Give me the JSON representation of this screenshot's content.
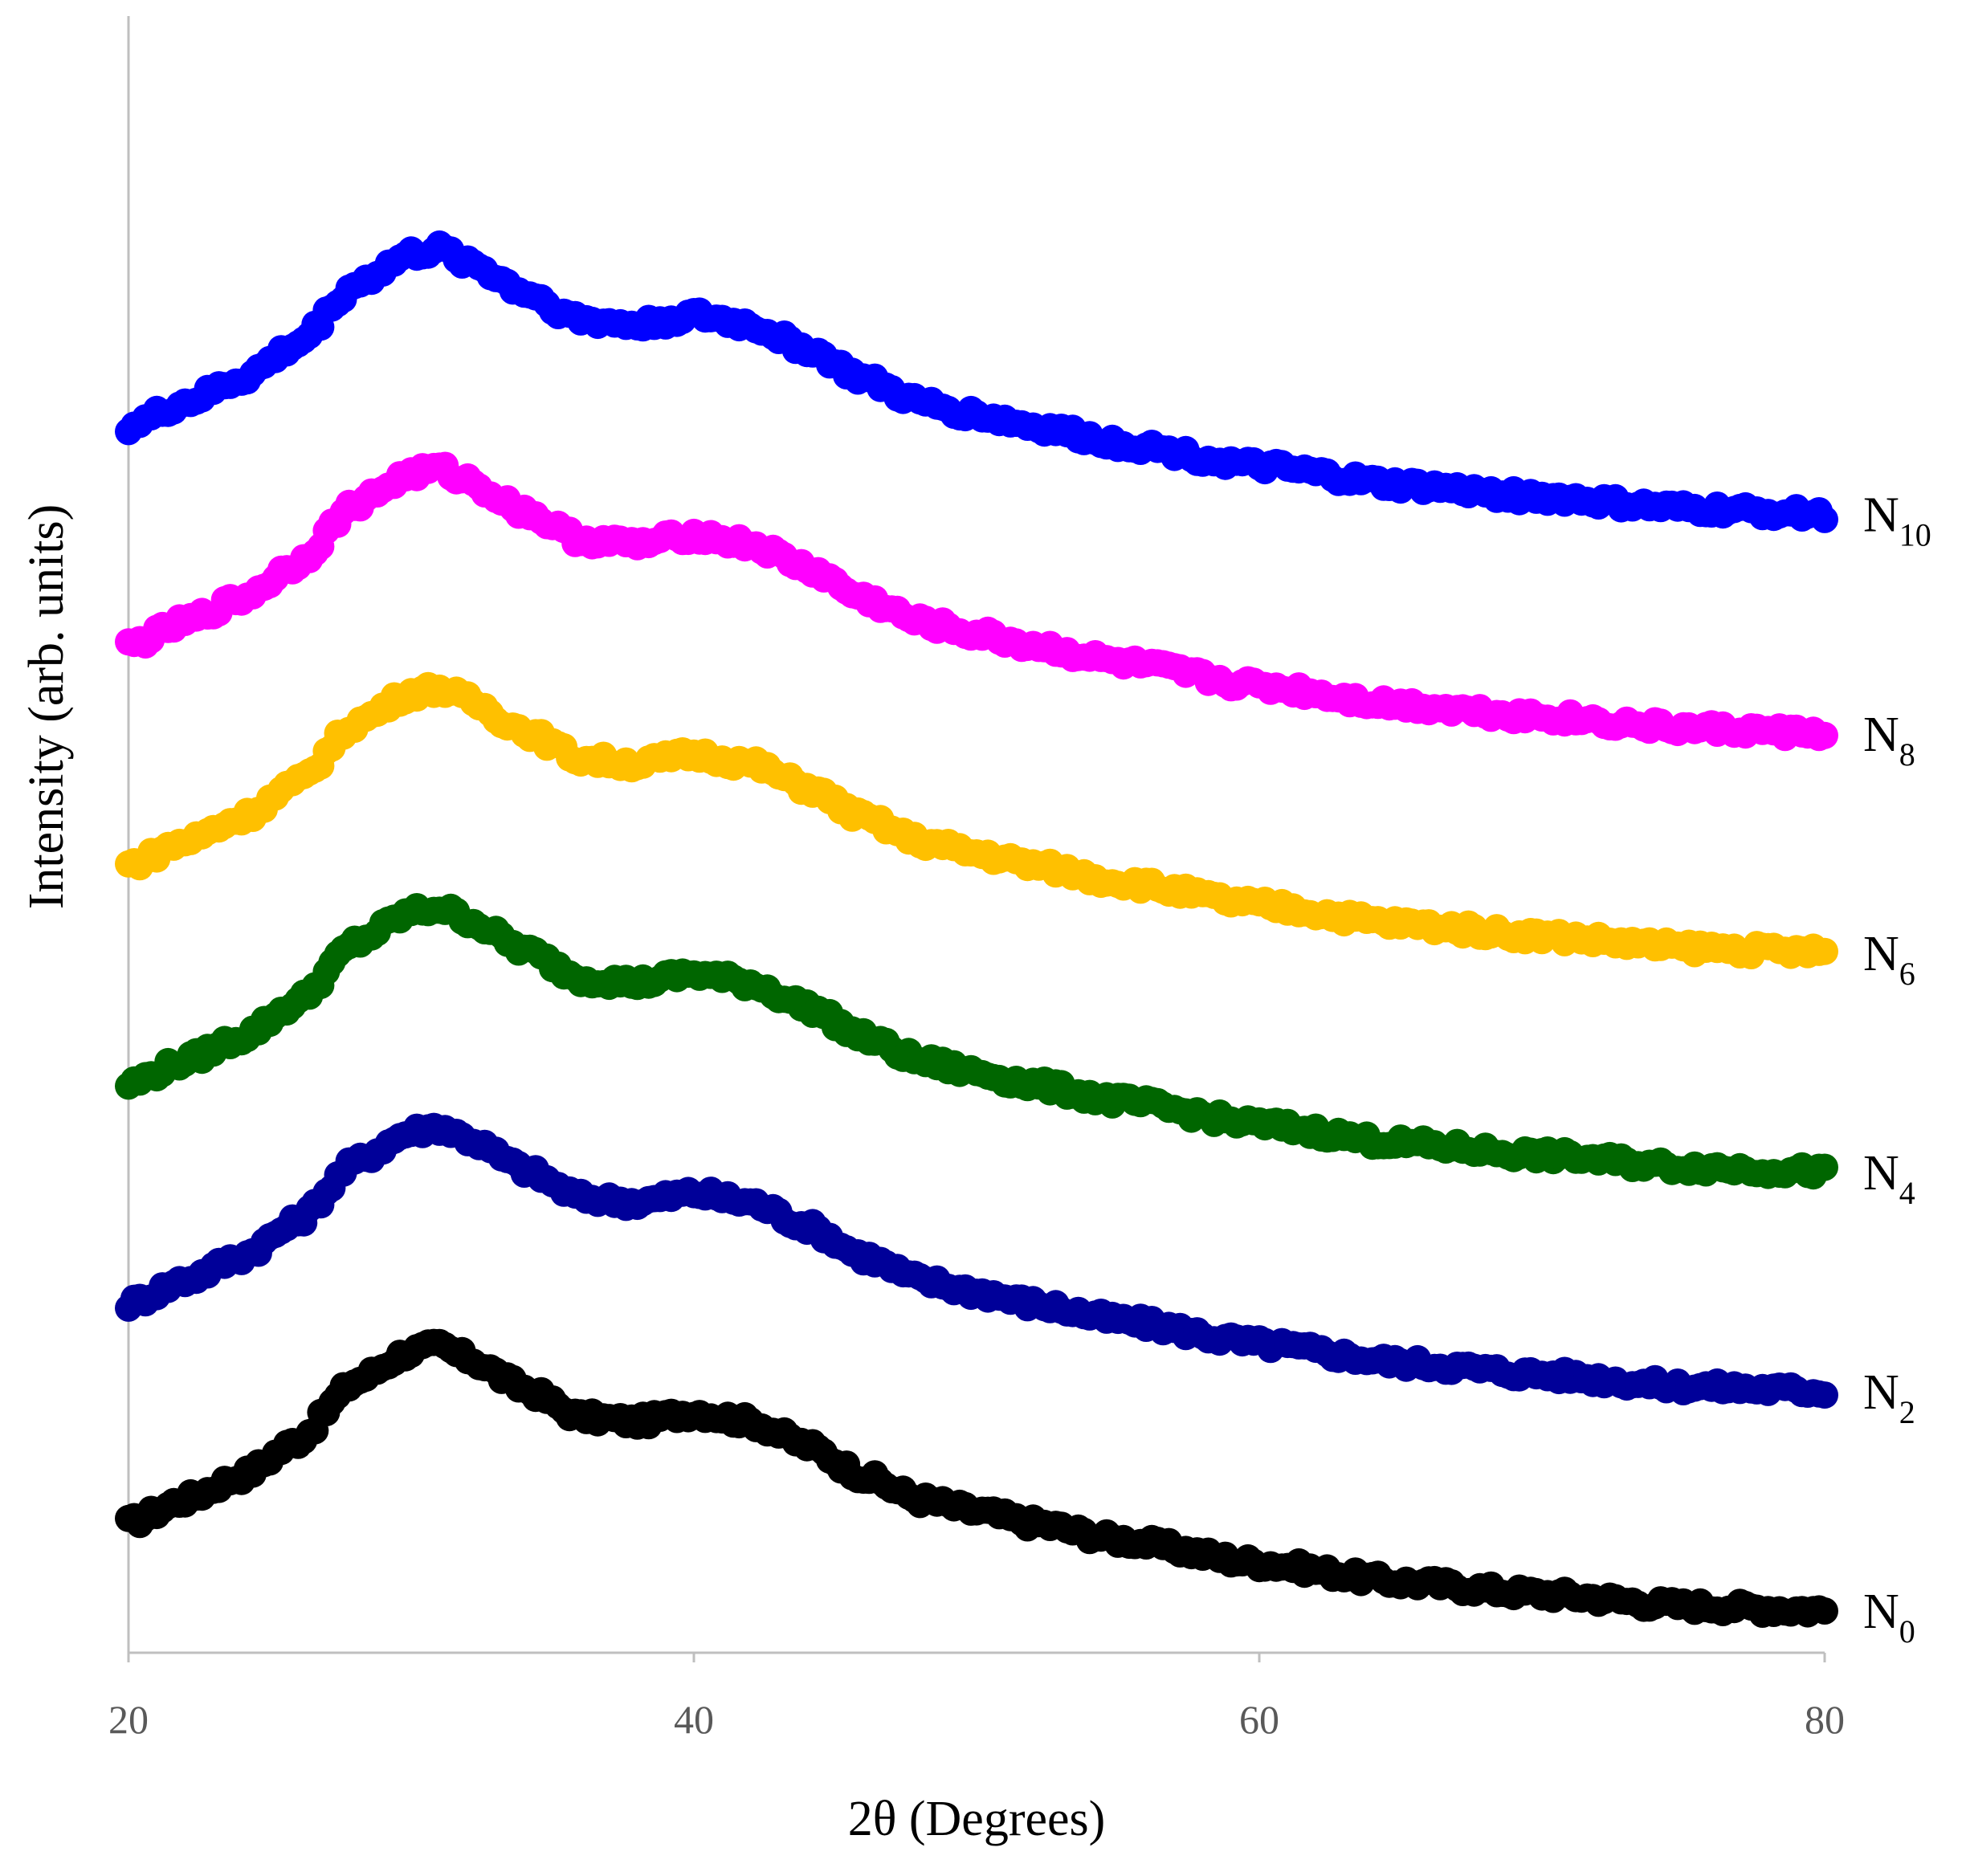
{
  "chart_data": {
    "type": "scatter",
    "title": "",
    "xlabel": "2θ (Degrees)",
    "ylabel": "Intensity (arb. units)",
    "xlim": [
      20,
      80
    ],
    "ylim": [
      0,
      6.6
    ],
    "xticks": [
      20,
      40,
      60,
      80
    ],
    "yticks_shown": false,
    "grid": false,
    "legend": "none; series labeled at right end of each trace",
    "note": "Six vertically offset XRD traces; y values are in arbitrary stacked units (each series offset by ~0.93).",
    "x": [
      20,
      22,
      24,
      26,
      28,
      30,
      31,
      32,
      34,
      36,
      38,
      40,
      42,
      44,
      46,
      48,
      50,
      52,
      55,
      60,
      65,
      70,
      75,
      80
    ],
    "series": [
      {
        "name": "N0",
        "label_main": "N",
        "label_sub": "0",
        "color": "#000000",
        "values": [
          0.55,
          0.65,
          0.75,
          0.9,
          1.15,
          1.28,
          1.3,
          1.25,
          1.12,
          1.0,
          0.98,
          1.02,
          0.98,
          0.88,
          0.75,
          0.65,
          0.6,
          0.55,
          0.48,
          0.38,
          0.3,
          0.25,
          0.2,
          0.18
        ]
      },
      {
        "name": "N2",
        "label_main": "N",
        "label_sub": "2",
        "color": "#000099",
        "values": [
          1.48,
          1.58,
          1.68,
          1.83,
          2.08,
          2.21,
          2.23,
          2.18,
          2.05,
          1.93,
          1.91,
          1.95,
          1.91,
          1.81,
          1.68,
          1.58,
          1.53,
          1.48,
          1.41,
          1.31,
          1.23,
          1.18,
          1.13,
          1.11
        ]
      },
      {
        "name": "N4",
        "label_main": "N",
        "label_sub": "4",
        "color": "#006600",
        "values": [
          2.41,
          2.51,
          2.61,
          2.76,
          3.01,
          3.14,
          3.16,
          3.11,
          2.98,
          2.86,
          2.84,
          2.88,
          2.84,
          2.74,
          2.61,
          2.51,
          2.46,
          2.41,
          2.34,
          2.24,
          2.16,
          2.11,
          2.06,
          2.04
        ]
      },
      {
        "name": "N6",
        "label_main": "N",
        "label_sub": "6",
        "color": "#FFC000",
        "values": [
          3.34,
          3.44,
          3.54,
          3.69,
          3.94,
          4.07,
          4.09,
          4.04,
          3.91,
          3.79,
          3.77,
          3.81,
          3.77,
          3.67,
          3.54,
          3.44,
          3.39,
          3.34,
          3.27,
          3.17,
          3.09,
          3.04,
          2.99,
          2.97
        ]
      },
      {
        "name": "N8",
        "label_main": "N",
        "label_sub": "8",
        "color": "#FF00FF",
        "values": [
          4.27,
          4.37,
          4.47,
          4.62,
          4.87,
          5.0,
          5.02,
          4.97,
          4.84,
          4.72,
          4.7,
          4.74,
          4.7,
          4.6,
          4.47,
          4.37,
          4.32,
          4.27,
          4.2,
          4.1,
          4.02,
          3.97,
          3.92,
          3.9
        ]
      },
      {
        "name": "N10",
        "label_main": "N",
        "label_sub": "10",
        "color": "#0000FF",
        "values": [
          5.2,
          5.3,
          5.4,
          5.55,
          5.8,
          5.93,
          5.95,
          5.9,
          5.77,
          5.65,
          5.63,
          5.67,
          5.63,
          5.53,
          5.4,
          5.3,
          5.25,
          5.2,
          5.13,
          5.03,
          4.95,
          4.9,
          4.85,
          4.83
        ]
      }
    ]
  }
}
